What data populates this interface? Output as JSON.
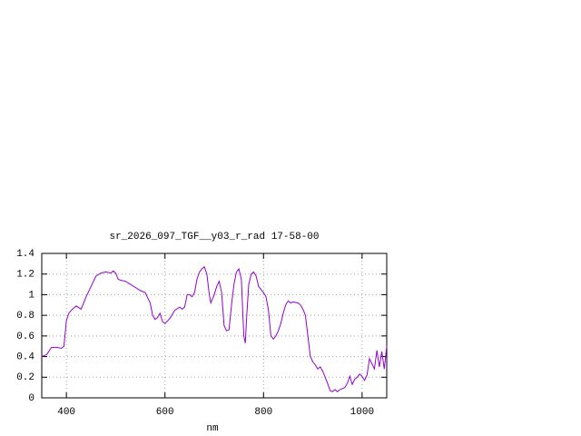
{
  "chart_data": {
    "type": "line",
    "title": "sr_2026_097_TGF__y03_r_rad 17-58-00",
    "x_label": "nm",
    "xlim": [
      350,
      1050
    ],
    "xticks": [
      400,
      600,
      800,
      1000
    ],
    "ylim": [
      0,
      1.4
    ],
    "yticks": [
      0,
      0.2,
      0.4,
      0.6,
      0.8,
      1,
      1.2,
      1.4
    ],
    "grid": true,
    "x": [
      350,
      360,
      370,
      380,
      390,
      395,
      400,
      405,
      410,
      420,
      430,
      440,
      450,
      460,
      470,
      480,
      490,
      495,
      500,
      505,
      510,
      520,
      530,
      540,
      550,
      560,
      570,
      575,
      580,
      585,
      590,
      595,
      600,
      610,
      620,
      630,
      635,
      640,
      645,
      650,
      655,
      660,
      665,
      670,
      675,
      680,
      685,
      690,
      693,
      700,
      705,
      710,
      715,
      720,
      725,
      730,
      735,
      740,
      745,
      750,
      755,
      760,
      763,
      766,
      770,
      775,
      780,
      785,
      790,
      800,
      805,
      810,
      815,
      820,
      825,
      830,
      835,
      840,
      845,
      850,
      855,
      860,
      870,
      875,
      880,
      885,
      890,
      895,
      900,
      905,
      910,
      915,
      920,
      925,
      930,
      935,
      940,
      945,
      950,
      955,
      960,
      965,
      970,
      975,
      980,
      985,
      990,
      995,
      1000,
      1005,
      1010,
      1015,
      1020,
      1025,
      1030,
      1035,
      1040,
      1045,
      1050
    ],
    "series": [
      {
        "color": "#9400d3",
        "values": [
          0.4,
          0.42,
          0.49,
          0.49,
          0.48,
          0.5,
          0.75,
          0.82,
          0.85,
          0.89,
          0.86,
          0.98,
          1.08,
          1.18,
          1.21,
          1.22,
          1.21,
          1.23,
          1.21,
          1.15,
          1.14,
          1.13,
          1.1,
          1.07,
          1.04,
          1.02,
          0.92,
          0.8,
          0.76,
          0.78,
          0.82,
          0.74,
          0.72,
          0.77,
          0.85,
          0.88,
          0.86,
          0.88,
          1.0,
          1.0,
          0.98,
          1.02,
          1.15,
          1.22,
          1.25,
          1.27,
          1.2,
          1.0,
          0.92,
          1.0,
          1.08,
          1.13,
          1.02,
          0.7,
          0.65,
          0.66,
          0.9,
          1.1,
          1.22,
          1.25,
          1.15,
          0.6,
          0.53,
          0.8,
          1.1,
          1.2,
          1.22,
          1.18,
          1.08,
          1.02,
          0.98,
          0.85,
          0.6,
          0.57,
          0.6,
          0.65,
          0.72,
          0.82,
          0.9,
          0.94,
          0.92,
          0.93,
          0.92,
          0.9,
          0.86,
          0.8,
          0.6,
          0.4,
          0.35,
          0.32,
          0.28,
          0.3,
          0.26,
          0.2,
          0.14,
          0.07,
          0.06,
          0.08,
          0.06,
          0.08,
          0.09,
          0.1,
          0.14,
          0.21,
          0.13,
          0.18,
          0.2,
          0.23,
          0.21,
          0.17,
          0.22,
          0.38,
          0.33,
          0.28,
          0.46,
          0.3,
          0.45,
          0.28,
          0.5
        ]
      }
    ]
  }
}
